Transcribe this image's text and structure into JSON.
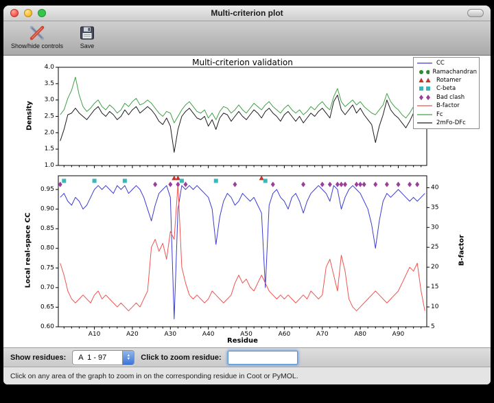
{
  "window": {
    "title": "Multi-criterion plot",
    "toolbar": {
      "show_hide_label": "Show/hide controls",
      "save_label": "Save"
    },
    "controls": {
      "show_residues_label": "Show residues:",
      "residue_range_value": "A  1 - 97",
      "zoom_label": "Click to zoom residue:",
      "zoom_value": ""
    },
    "status_text": "Click on any area of the graph to zoom in on the corresponding residue in Coot or PyMOL."
  },
  "icons": {
    "stepper_up": "▲",
    "stepper_down": "▼"
  },
  "chart_data": {
    "type": "line",
    "title": "Multi-criterion validation",
    "xlabel": "Residue",
    "x_range": [
      0.5,
      97.5
    ],
    "x_ticks": [
      {
        "pos": 10,
        "label": "A10"
      },
      {
        "pos": 20,
        "label": "A20"
      },
      {
        "pos": 30,
        "label": "A30"
      },
      {
        "pos": 40,
        "label": "A40"
      },
      {
        "pos": 50,
        "label": "A50"
      },
      {
        "pos": 60,
        "label": "A60"
      },
      {
        "pos": 70,
        "label": "A70"
      },
      {
        "pos": 80,
        "label": "A80"
      },
      {
        "pos": 90,
        "label": "A90"
      }
    ],
    "top_plot": {
      "ylabel": "Density",
      "ylim": [
        1.0,
        4.0
      ],
      "yticks": [
        1.0,
        1.5,
        2.0,
        2.5,
        3.0,
        3.5,
        4.0
      ],
      "series": [
        {
          "name": "Fc",
          "color": "#3fa045",
          "values": [
            2.55,
            2.7,
            3.05,
            3.3,
            3.7,
            3.15,
            2.8,
            2.65,
            2.75,
            2.9,
            3.0,
            2.8,
            2.7,
            2.85,
            2.75,
            2.6,
            2.7,
            2.9,
            2.8,
            2.95,
            3.05,
            2.85,
            2.9,
            3.0,
            2.9,
            2.75,
            2.6,
            2.5,
            2.65,
            2.6,
            2.3,
            2.5,
            2.7,
            2.85,
            2.95,
            2.8,
            2.65,
            2.6,
            2.7,
            2.45,
            2.6,
            2.4,
            2.65,
            2.8,
            2.75,
            2.6,
            2.7,
            2.85,
            2.7,
            2.6,
            2.75,
            2.9,
            2.8,
            2.7,
            2.85,
            2.95,
            2.8,
            2.7,
            2.6,
            2.75,
            2.85,
            2.7,
            2.6,
            2.7,
            2.55,
            2.65,
            2.8,
            2.7,
            2.85,
            2.95,
            2.8,
            2.7,
            3.1,
            3.35,
            2.95,
            2.8,
            2.9,
            3.0,
            2.85,
            2.95,
            2.8,
            2.7,
            2.6,
            2.55,
            2.7,
            2.85,
            3.2,
            2.95,
            2.8,
            2.7,
            2.55,
            2.45,
            2.6,
            2.8,
            3.1,
            3.25,
            3.35
          ]
        },
        {
          "name": "2mFo-DFc",
          "color": "#1a1a1a",
          "values": [
            1.75,
            2.1,
            2.55,
            2.6,
            2.75,
            2.6,
            2.5,
            2.4,
            2.55,
            2.7,
            2.8,
            2.6,
            2.5,
            2.65,
            2.55,
            2.4,
            2.5,
            2.7,
            2.55,
            2.7,
            2.8,
            2.6,
            2.7,
            2.8,
            2.7,
            2.55,
            2.35,
            2.25,
            2.45,
            2.2,
            1.4,
            2.1,
            2.5,
            2.65,
            2.75,
            2.6,
            2.45,
            2.4,
            2.5,
            2.2,
            2.4,
            2.1,
            2.45,
            2.6,
            2.55,
            2.35,
            2.5,
            2.65,
            2.5,
            2.4,
            2.55,
            2.7,
            2.6,
            2.45,
            2.65,
            2.75,
            2.6,
            2.5,
            2.35,
            2.55,
            2.65,
            2.5,
            2.35,
            2.5,
            2.3,
            2.45,
            2.6,
            2.5,
            2.65,
            2.75,
            2.6,
            2.45,
            2.95,
            3.15,
            2.7,
            2.55,
            2.7,
            2.85,
            2.6,
            2.75,
            2.55,
            2.4,
            2.25,
            1.7,
            2.2,
            2.55,
            3.0,
            2.7,
            2.55,
            2.45,
            2.3,
            2.15,
            2.35,
            2.6,
            2.9,
            3.0,
            3.05
          ]
        }
      ]
    },
    "bottom_plot": {
      "ylabel_left": "Local real-space CC",
      "ylim_left": [
        0.6,
        0.985
      ],
      "yticks_left": [
        0.6,
        0.65,
        0.7,
        0.75,
        0.8,
        0.85,
        0.9,
        0.95
      ],
      "ylabel_right": "B-factor",
      "ylim_right": [
        5,
        43
      ],
      "yticks_right": [
        5,
        10,
        15,
        20,
        25,
        30,
        35,
        40
      ],
      "series": [
        {
          "name": "CC",
          "axis": "left",
          "color": "#3a3ad1",
          "values": [
            0.93,
            0.94,
            0.92,
            0.91,
            0.93,
            0.92,
            0.9,
            0.91,
            0.93,
            0.95,
            0.96,
            0.95,
            0.96,
            0.95,
            0.94,
            0.96,
            0.95,
            0.96,
            0.94,
            0.95,
            0.96,
            0.95,
            0.93,
            0.9,
            0.87,
            0.91,
            0.94,
            0.95,
            0.96,
            0.93,
            0.62,
            0.9,
            0.96,
            0.95,
            0.96,
            0.95,
            0.96,
            0.95,
            0.94,
            0.93,
            0.9,
            0.81,
            0.88,
            0.92,
            0.94,
            0.93,
            0.91,
            0.92,
            0.94,
            0.93,
            0.92,
            0.93,
            0.91,
            0.89,
            0.7,
            0.91,
            0.94,
            0.95,
            0.93,
            0.92,
            0.9,
            0.93,
            0.94,
            0.92,
            0.89,
            0.92,
            0.94,
            0.95,
            0.96,
            0.95,
            0.94,
            0.92,
            0.96,
            0.95,
            0.9,
            0.93,
            0.95,
            0.96,
            0.95,
            0.94,
            0.92,
            0.9,
            0.86,
            0.8,
            0.87,
            0.92,
            0.94,
            0.93,
            0.94,
            0.95,
            0.94,
            0.93,
            0.92,
            0.93,
            0.92,
            0.93,
            0.94
          ]
        },
        {
          "name": "B-factor",
          "axis": "right",
          "color": "#f0524f",
          "values": [
            21,
            18,
            14,
            12,
            11,
            12,
            13,
            12,
            11,
            13,
            14,
            12,
            13,
            12,
            11,
            10,
            11,
            10,
            9,
            10,
            11,
            10,
            12,
            14,
            25,
            27,
            24,
            26,
            22,
            29,
            27,
            41,
            20,
            16,
            13,
            12,
            13,
            12,
            11,
            12,
            14,
            13,
            12,
            11,
            12,
            13,
            16,
            18,
            16,
            17,
            15,
            14,
            16,
            18,
            16,
            14,
            13,
            12,
            13,
            12,
            13,
            12,
            11,
            12,
            13,
            12,
            14,
            13,
            12,
            13,
            20,
            22,
            18,
            14,
            23,
            19,
            12,
            10,
            9,
            10,
            11,
            12,
            13,
            14,
            13,
            12,
            11,
            12,
            13,
            14,
            16,
            18,
            20,
            19,
            21,
            14,
            9
          ]
        }
      ],
      "markers": [
        {
          "name": "Rotamer",
          "shape": "triangle",
          "color": "#c9332a",
          "y": 0.979,
          "residues": [
            31,
            32,
            54
          ]
        },
        {
          "name": "C-beta",
          "shape": "square",
          "color": "#38b8b8",
          "y": 0.972,
          "residues": [
            2,
            10,
            18,
            33,
            42,
            55
          ]
        },
        {
          "name": "Bad clash",
          "shape": "diamond",
          "color": "#9b3d9b",
          "y": 0.963,
          "residues": [
            1,
            26,
            30,
            32,
            34,
            47,
            57,
            65,
            70,
            72,
            74,
            75,
            76,
            79,
            80,
            81,
            84,
            87,
            90,
            93,
            95
          ]
        }
      ]
    },
    "legend": [
      {
        "label": "CC",
        "type": "line",
        "color": "#3a3ad1"
      },
      {
        "label": "Ramachandran",
        "type": "circle",
        "color": "#2e8b2e"
      },
      {
        "label": "Rotamer",
        "type": "triangle",
        "color": "#c9332a"
      },
      {
        "label": "C-beta",
        "type": "square",
        "color": "#38b8b8"
      },
      {
        "label": "Bad clash",
        "type": "diamond",
        "color": "#9b3d9b"
      },
      {
        "label": "B-factor",
        "type": "line",
        "color": "#f0524f"
      },
      {
        "label": "Fc",
        "type": "line",
        "color": "#3fa045"
      },
      {
        "label": "2mFo-DFc",
        "type": "line",
        "color": "#1a1a1a"
      }
    ]
  }
}
